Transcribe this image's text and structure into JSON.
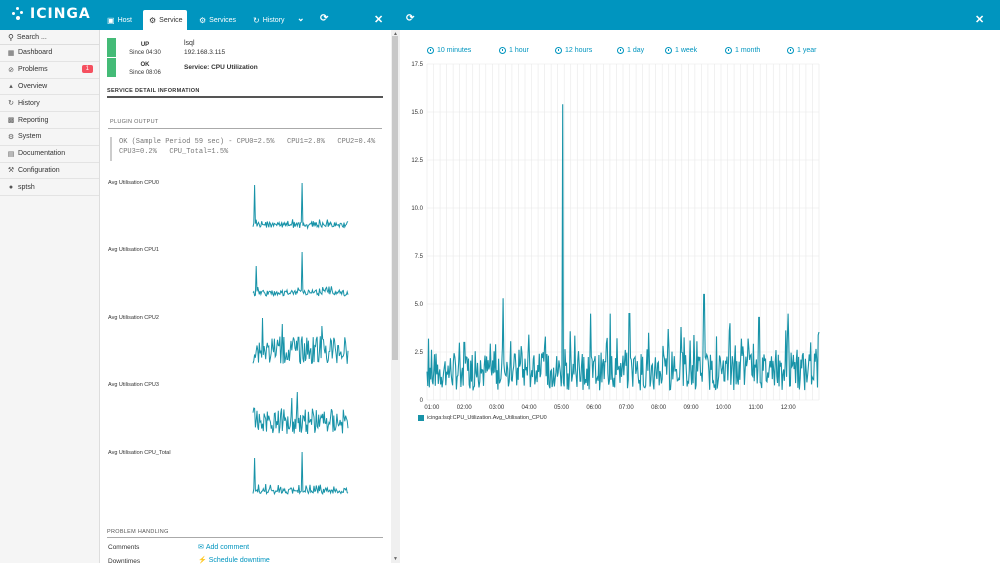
{
  "app": {
    "brand": "icinga"
  },
  "tabs": [
    {
      "label": "Host",
      "icon": "laptop-icon"
    },
    {
      "label": "Service",
      "icon": "gear-icon"
    },
    {
      "label": "Services",
      "icon": "gears-icon"
    },
    {
      "label": "History",
      "icon": "history-icon"
    }
  ],
  "sidebar": {
    "search_placeholder": "Search ...",
    "items": [
      {
        "label": "Dashboard",
        "icon": "dashboard-icon"
      },
      {
        "label": "Problems",
        "icon": "problems-icon",
        "badge": "1"
      },
      {
        "label": "Overview",
        "icon": "overview-icon"
      },
      {
        "label": "History",
        "icon": "history-icon"
      },
      {
        "label": "Reporting",
        "icon": "reporting-icon"
      },
      {
        "label": "System",
        "icon": "system-icon"
      },
      {
        "label": "Documentation",
        "icon": "documentation-icon"
      },
      {
        "label": "Configuration",
        "icon": "configuration-icon"
      },
      {
        "label": "sptsh",
        "icon": "user-icon"
      }
    ]
  },
  "host": {
    "state": "UP",
    "since": "Since 04:30",
    "name": "lsql",
    "address": "192.168.3.115"
  },
  "service": {
    "state": "OK",
    "since": "Since 08:06",
    "name": "Service: CPU Utilization"
  },
  "detail_heading": "Service detail information",
  "plugin_heading": "Plugin Output",
  "plugin_output_line1": "OK (Sample Period 59 sec) - CPU0=2.5%   CPU1=2.8%   CPU2=0.4%",
  "plugin_output_line2": "CPU3=0.2%   CPU_Total=1.5%",
  "cpu_graphs": [
    {
      "label": "Avg Utilisation CPU0"
    },
    {
      "label": "Avg Utilisation CPU1"
    },
    {
      "label": "Avg Utilisation CPU2"
    },
    {
      "label": "Avg Utilisation CPU3"
    },
    {
      "label": "Avg Utilisation CPU_Total"
    }
  ],
  "problem_heading": "Problem handling",
  "comments_label": "Comments",
  "add_comment": "Add comment",
  "downtimes_label": "Downtimes",
  "schedule_downtime": "Schedule downtime",
  "ranges": [
    "10 minutes",
    "1 hour",
    "12 hours",
    "1 day",
    "1 week",
    "1 month",
    "1 year"
  ],
  "colors": {
    "accent": "#0095bf",
    "series": "#1893a8",
    "ok": "#44bb77",
    "badge": "#f5505f"
  },
  "chart_data": {
    "type": "line",
    "xlabel": "",
    "ylabel": "",
    "ylim": [
      0,
      17.5
    ],
    "yticks": [
      "0",
      "2.5",
      "5.0",
      "7.5",
      "10.0",
      "12.5",
      "15.0",
      "17.5"
    ],
    "xticks": [
      "01:00",
      "02:00",
      "03:00",
      "04:00",
      "05:00",
      "06:00",
      "07:00",
      "08:00",
      "09:00",
      "10:00",
      "11:00",
      "12:00"
    ],
    "x_range_hours": [
      0.85,
      12.95
    ],
    "grid": true,
    "legend": "bottom-left",
    "series": [
      {
        "name": "icinga:lsql:CPU_Utilization.Avg_Utilisation_CPU0",
        "peaks": [
          {
            "x": 0.9,
            "y": 3.2
          },
          {
            "x": 2.0,
            "y": 3.0
          },
          {
            "x": 3.2,
            "y": 5.3
          },
          {
            "x": 4.0,
            "y": 3.4
          },
          {
            "x": 4.5,
            "y": 3.3
          },
          {
            "x": 5.04,
            "y": 15.4
          },
          {
            "x": 5.9,
            "y": 4.5
          },
          {
            "x": 6.5,
            "y": 4.5
          },
          {
            "x": 7.1,
            "y": 4.5
          },
          {
            "x": 7.7,
            "y": 3.5
          },
          {
            "x": 8.7,
            "y": 3.8
          },
          {
            "x": 9.4,
            "y": 5.5
          },
          {
            "x": 10.2,
            "y": 4.0
          },
          {
            "x": 11.1,
            "y": 4.3
          },
          {
            "x": 12.0,
            "y": 4.5
          },
          {
            "x": 12.7,
            "y": 3.0
          }
        ],
        "baseline_range": [
          0.5,
          2.5
        ]
      }
    ]
  }
}
